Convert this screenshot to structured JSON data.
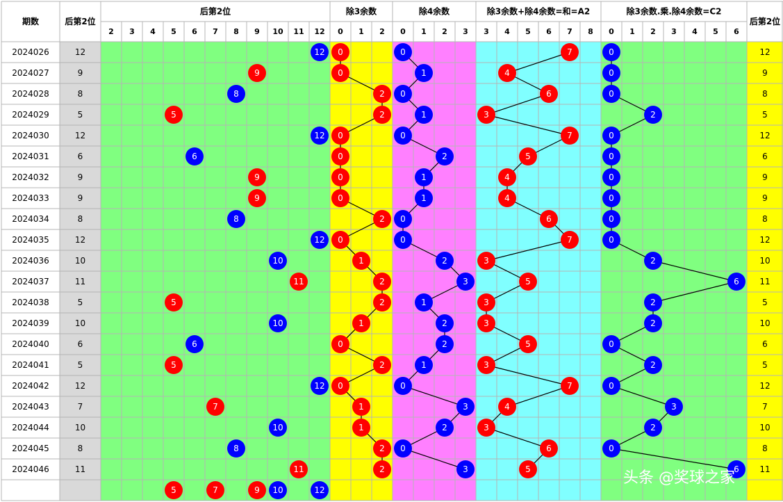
{
  "watermark": "头条 @奖球之家",
  "colors": {
    "header_bg": "#ffffff",
    "grid_line": "#b4b4b4",
    "date_bg": "#ffffff",
    "value_bg": "#d9d9d9",
    "green": "#80ff80",
    "yellow": "#ffff00",
    "magenta": "#ff80ff",
    "cyan": "#80ffff",
    "right_bg": "#ffff00",
    "red_ball": "#ff0000",
    "blue_ball": "#0000ff"
  },
  "chart_data": {
    "type": "table",
    "headers": {
      "period": "期数",
      "value": "后第2位",
      "right_value": "后第2位",
      "groups": [
        "后第2位",
        "除3余数",
        "除4余数",
        "除3余数+除4余数=和=A2",
        "除3余数.乘.除4余数=C2"
      ]
    },
    "subheaders": [
      [
        "2",
        "3",
        "4",
        "5",
        "6",
        "7",
        "8",
        "9",
        "10",
        "11",
        "12"
      ],
      [
        "0",
        "1",
        "2"
      ],
      [
        "0",
        "1",
        "2",
        "3"
      ],
      [
        "3",
        "4",
        "5",
        "6",
        "7",
        "8"
      ],
      [
        "0",
        "1",
        "2",
        "3",
        "4",
        "5",
        "6"
      ]
    ],
    "rows": [
      {
        "period": "2024026",
        "value": 12,
        "mod3": 0,
        "mod4": 0,
        "sum": 7,
        "prod": 0
      },
      {
        "period": "2024027",
        "value": 9,
        "mod3": 0,
        "mod4": 1,
        "sum": 4,
        "prod": 0
      },
      {
        "period": "2024028",
        "value": 8,
        "mod3": 2,
        "mod4": 0,
        "sum": 6,
        "prod": 0
      },
      {
        "period": "2024029",
        "value": 5,
        "mod3": 2,
        "mod4": 1,
        "sum": 3,
        "prod": 2
      },
      {
        "period": "2024030",
        "value": 12,
        "mod3": 0,
        "mod4": 0,
        "sum": 7,
        "prod": 0
      },
      {
        "period": "2024031",
        "value": 6,
        "mod3": 0,
        "mod4": 2,
        "sum": 5,
        "prod": 0
      },
      {
        "period": "2024032",
        "value": 9,
        "mod3": 0,
        "mod4": 1,
        "sum": 4,
        "prod": 0
      },
      {
        "period": "2024033",
        "value": 9,
        "mod3": 0,
        "mod4": 1,
        "sum": 4,
        "prod": 0
      },
      {
        "period": "2024034",
        "value": 8,
        "mod3": 2,
        "mod4": 0,
        "sum": 6,
        "prod": 0
      },
      {
        "period": "2024035",
        "value": 12,
        "mod3": 0,
        "mod4": 0,
        "sum": 7,
        "prod": 0
      },
      {
        "period": "2024036",
        "value": 10,
        "mod3": 1,
        "mod4": 2,
        "sum": 3,
        "prod": 2
      },
      {
        "period": "2024037",
        "value": 11,
        "mod3": 2,
        "mod4": 3,
        "sum": 5,
        "prod": 6
      },
      {
        "period": "2024038",
        "value": 5,
        "mod3": 2,
        "mod4": 1,
        "sum": 3,
        "prod": 2
      },
      {
        "period": "2024039",
        "value": 10,
        "mod3": 1,
        "mod4": 2,
        "sum": 3,
        "prod": 2
      },
      {
        "period": "2024040",
        "value": 6,
        "mod3": 0,
        "mod4": 2,
        "sum": 5,
        "prod": 0
      },
      {
        "period": "2024041",
        "value": 5,
        "mod3": 2,
        "mod4": 1,
        "sum": 3,
        "prod": 2
      },
      {
        "period": "2024042",
        "value": 12,
        "mod3": 0,
        "mod4": 0,
        "sum": 7,
        "prod": 0
      },
      {
        "period": "2024043",
        "value": 7,
        "mod3": 1,
        "mod4": 3,
        "sum": 4,
        "prod": 3
      },
      {
        "period": "2024044",
        "value": 10,
        "mod3": 1,
        "mod4": 2,
        "sum": 3,
        "prod": 2
      },
      {
        "period": "2024045",
        "value": 8,
        "mod3": 2,
        "mod4": 0,
        "sum": 6,
        "prod": 0
      },
      {
        "period": "2024046",
        "value": 11,
        "mod3": 2,
        "mod4": 3,
        "sum": 5,
        "prod": 6
      }
    ],
    "forecast_row": [
      5,
      7,
      9,
      10,
      12
    ]
  }
}
